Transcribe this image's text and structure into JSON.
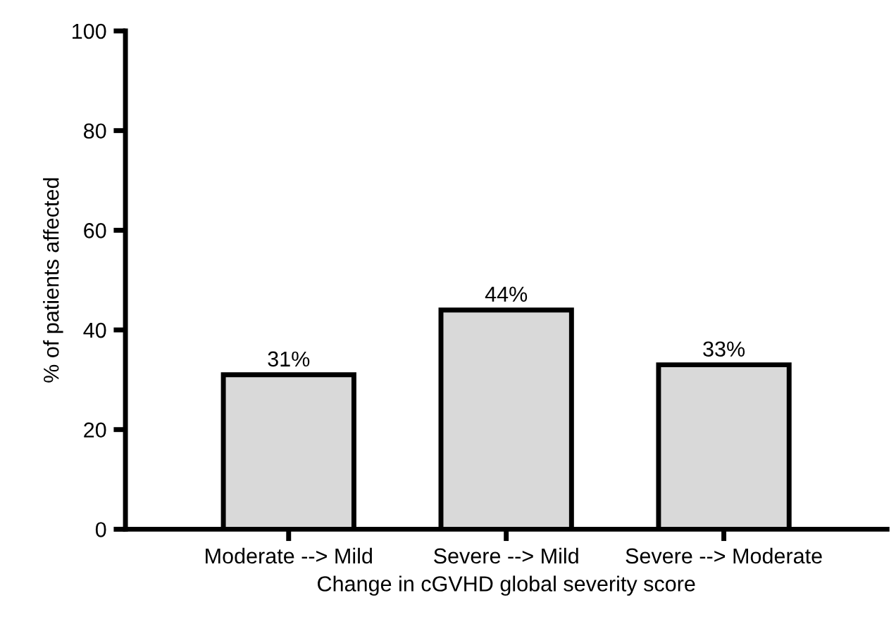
{
  "chart_data": {
    "type": "bar",
    "xlabel": "Change in cGVHD global severity score",
    "ylabel": "% of patients affected",
    "categories": [
      "Moderate --> Mild",
      "Severe --> Mild",
      "Severe --> Moderate"
    ],
    "values": [
      31,
      44,
      33
    ],
    "value_labels": [
      "31%",
      "44%",
      "33%"
    ],
    "color": "#d9d9d9",
    "ylim": [
      0,
      100
    ],
    "yticks": [
      0,
      20,
      40,
      60,
      80,
      100
    ],
    "grid": false
  }
}
